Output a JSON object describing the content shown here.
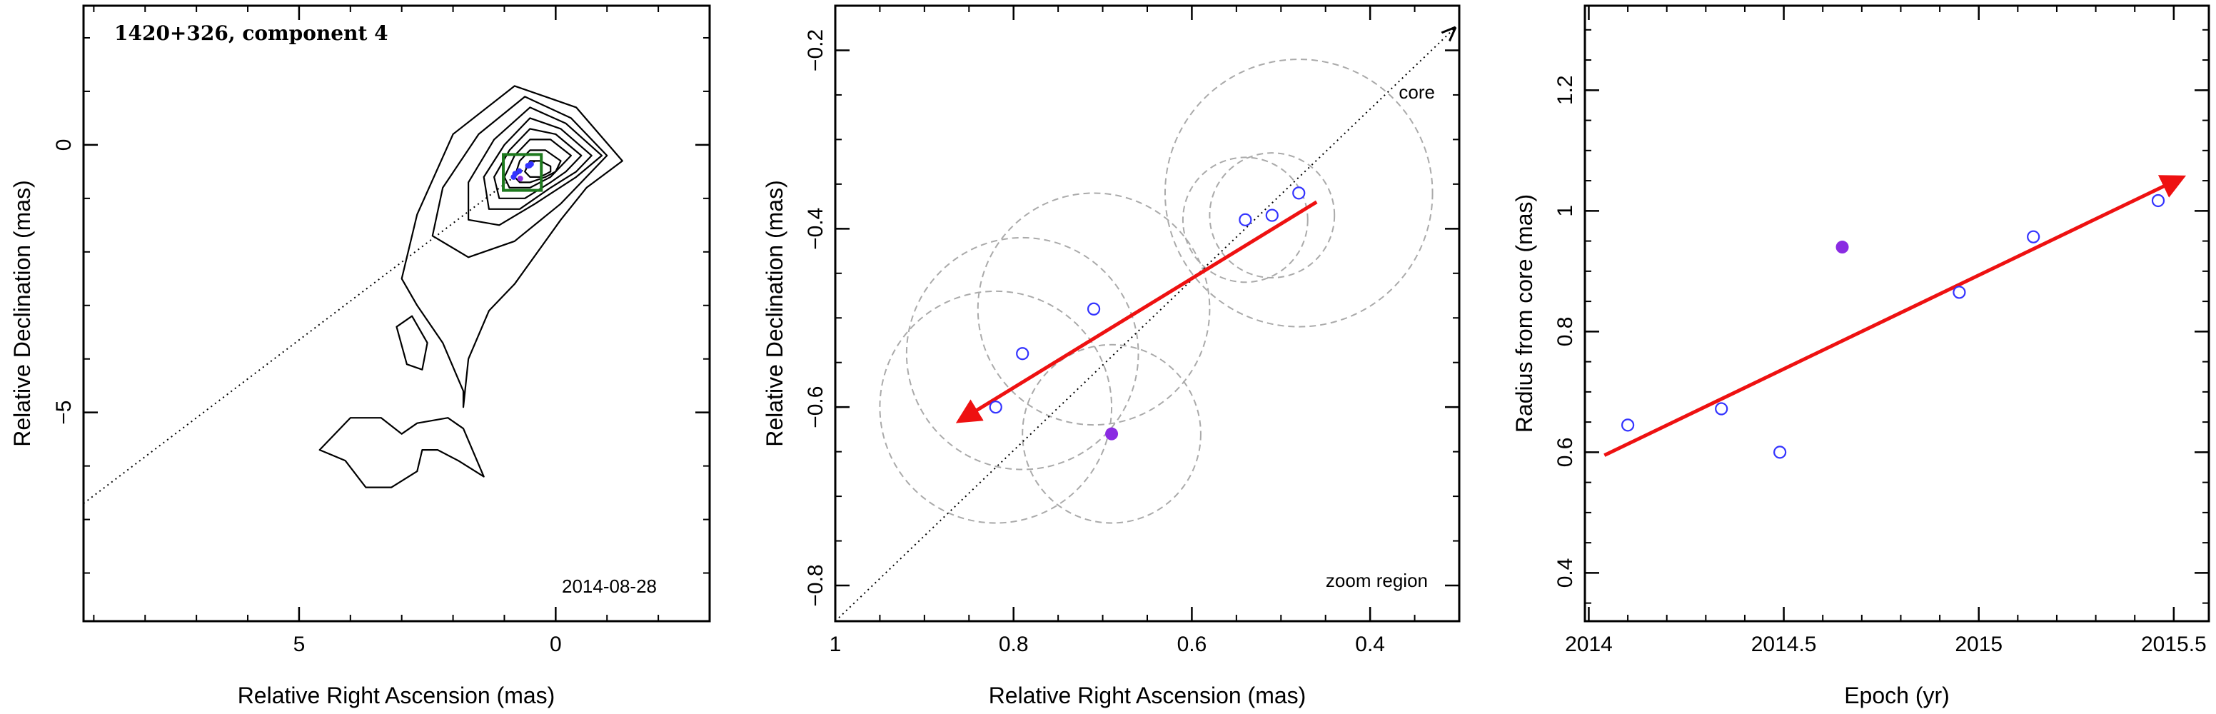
{
  "colors": {
    "observed_marker": "#3333ff",
    "highlight_marker": "#8a2be2",
    "fit_arrow": "#ee1111",
    "zoom_box": "#1e7a1e",
    "contour": "#000000",
    "error_circle": "#aaaaaa"
  },
  "chart_data": [
    {
      "type": "contour",
      "title": "1420+326, component 4",
      "date_label": "2014-08-28",
      "xlabel": "Relative Right Ascension (mas)",
      "ylabel": "Relative Declination (mas)",
      "xlim": [
        9.2,
        -3.0
      ],
      "ylim": [
        -8.9,
        2.6
      ],
      "x_ticks": [
        5,
        0
      ],
      "y_ticks": [
        0,
        -5
      ],
      "x_minor_step": 1,
      "y_minor_step": 1,
      "core_line": {
        "from": [
          9.2,
          -6.7
        ],
        "to": [
          0.4,
          -0.3
        ]
      },
      "zoom_box": {
        "ra": [
          1.02,
          0.28
        ],
        "dec": [
          -0.85,
          -0.18
        ]
      },
      "contours": [
        [
          [
            -1.3,
            -0.3
          ],
          [
            -0.4,
            0.7
          ],
          [
            0.8,
            1.1
          ],
          [
            2.0,
            0.2
          ],
          [
            2.7,
            -1.3
          ],
          [
            3.0,
            -2.5
          ],
          [
            2.7,
            -3.0
          ],
          [
            2.2,
            -3.7
          ],
          [
            1.8,
            -4.6
          ],
          [
            1.8,
            -4.9
          ],
          [
            1.7,
            -4.0
          ],
          [
            1.3,
            -3.1
          ],
          [
            0.8,
            -2.6
          ],
          [
            -0.1,
            -1.4
          ],
          [
            -0.6,
            -0.8
          ],
          [
            -1.3,
            -0.3
          ]
        ],
        [
          [
            -1.0,
            -0.2
          ],
          [
            -0.3,
            0.5
          ],
          [
            0.6,
            0.9
          ],
          [
            1.5,
            0.2
          ],
          [
            2.2,
            -0.8
          ],
          [
            2.4,
            -1.7
          ],
          [
            1.7,
            -2.1
          ],
          [
            0.8,
            -1.8
          ],
          [
            -0.1,
            -1.1
          ],
          [
            -1.0,
            -0.2
          ]
        ],
        [
          [
            -0.9,
            -0.2
          ],
          [
            -0.2,
            0.4
          ],
          [
            0.5,
            0.7
          ],
          [
            1.2,
            0.1
          ],
          [
            1.7,
            -0.7
          ],
          [
            1.7,
            -1.4
          ],
          [
            1.1,
            -1.5
          ],
          [
            0.4,
            -1.1
          ],
          [
            -0.4,
            -0.6
          ],
          [
            -0.9,
            -0.2
          ]
        ],
        [
          [
            -0.7,
            -0.2
          ],
          [
            -0.1,
            0.3
          ],
          [
            0.5,
            0.5
          ],
          [
            1.0,
            0.0
          ],
          [
            1.4,
            -0.6
          ],
          [
            1.3,
            -1.2
          ],
          [
            0.7,
            -1.2
          ],
          [
            0.1,
            -0.8
          ],
          [
            -0.4,
            -0.5
          ],
          [
            -0.7,
            -0.2
          ]
        ],
        [
          [
            -0.5,
            -0.2
          ],
          [
            0.0,
            0.2
          ],
          [
            0.5,
            0.3
          ],
          [
            0.9,
            -0.1
          ],
          [
            1.2,
            -0.6
          ],
          [
            1.1,
            -1.0
          ],
          [
            0.6,
            -1.0
          ],
          [
            0.1,
            -0.7
          ],
          [
            -0.2,
            -0.5
          ],
          [
            -0.5,
            -0.2
          ]
        ],
        [
          [
            -0.3,
            -0.2
          ],
          [
            0.1,
            0.1
          ],
          [
            0.5,
            0.1
          ],
          [
            0.8,
            -0.2
          ],
          [
            1.0,
            -0.6
          ],
          [
            0.9,
            -0.8
          ],
          [
            0.5,
            -0.8
          ],
          [
            0.1,
            -0.6
          ],
          [
            -0.1,
            -0.4
          ],
          [
            -0.3,
            -0.2
          ]
        ],
        [
          [
            -0.1,
            -0.3
          ],
          [
            0.2,
            -0.1
          ],
          [
            0.5,
            -0.1
          ],
          [
            0.7,
            -0.3
          ],
          [
            0.8,
            -0.6
          ],
          [
            0.7,
            -0.7
          ],
          [
            0.5,
            -0.7
          ],
          [
            0.2,
            -0.6
          ],
          [
            0.0,
            -0.5
          ],
          [
            -0.1,
            -0.3
          ]
        ],
        [
          [
            0.1,
            -0.4
          ],
          [
            0.3,
            -0.3
          ],
          [
            0.5,
            -0.3
          ],
          [
            0.6,
            -0.5
          ],
          [
            0.5,
            -0.6
          ],
          [
            0.3,
            -0.6
          ],
          [
            0.1,
            -0.5
          ],
          [
            0.1,
            -0.4
          ]
        ],
        [
          [
            2.9,
            -4.1
          ],
          [
            3.1,
            -3.4
          ],
          [
            2.8,
            -3.2
          ],
          [
            2.5,
            -3.7
          ],
          [
            2.6,
            -4.2
          ],
          [
            2.9,
            -4.1
          ]
        ],
        [
          [
            4.3,
            -5.4
          ],
          [
            4.6,
            -5.7
          ],
          [
            4.1,
            -5.9
          ],
          [
            3.7,
            -6.4
          ],
          [
            3.2,
            -6.4
          ],
          [
            2.7,
            -6.1
          ],
          [
            2.6,
            -5.7
          ],
          [
            2.3,
            -5.7
          ],
          [
            1.9,
            -5.9
          ],
          [
            1.4,
            -6.2
          ],
          [
            1.8,
            -5.3
          ],
          [
            2.1,
            -5.1
          ],
          [
            2.7,
            -5.2
          ],
          [
            3.0,
            -5.4
          ],
          [
            3.4,
            -5.1
          ],
          [
            4.0,
            -5.1
          ],
          [
            4.3,
            -5.4
          ]
        ]
      ],
      "points": {
        "ra": [
          0.82,
          0.79,
          0.71,
          0.69,
          0.54,
          0.51,
          0.48
        ],
        "dec": [
          -0.6,
          -0.54,
          -0.49,
          -0.63,
          -0.39,
          -0.385,
          -0.36
        ]
      }
    },
    {
      "type": "scatter",
      "title": "",
      "corner_label": "zoom region",
      "core_label": "core",
      "xlabel": "Relative Right Ascension (mas)",
      "ylabel": "Relative Declination (mas)",
      "xlim": [
        1.0,
        0.3
      ],
      "ylim": [
        -0.84,
        -0.15
      ],
      "x_ticks": [
        1,
        0.8,
        0.6,
        0.4
      ],
      "x_tick_labels": [
        "1",
        "0.8",
        "0.6",
        "0.4"
      ],
      "y_ticks": [
        -0.2,
        -0.4,
        -0.6,
        -0.8
      ],
      "y_tick_labels": [
        "−0.2",
        "−0.4",
        "−0.6",
        "−0.8"
      ],
      "x_minor_step": 0.05,
      "y_minor_step": 0.05,
      "series": [
        {
          "ra": [
            0.82,
            0.79,
            0.71,
            0.54,
            0.51,
            0.48
          ],
          "dec": [
            -0.6,
            -0.54,
            -0.49,
            -0.39,
            -0.385,
            -0.36
          ],
          "filled": false
        },
        {
          "ra": [
            0.69
          ],
          "dec": [
            -0.63
          ],
          "filled": true
        }
      ],
      "error_circles": [
        {
          "ra": 0.82,
          "dec": -0.6,
          "r": 0.13
        },
        {
          "ra": 0.79,
          "dec": -0.54,
          "r": 0.13
        },
        {
          "ra": 0.71,
          "dec": -0.49,
          "r": 0.13
        },
        {
          "ra": 0.69,
          "dec": -0.63,
          "r": 0.1
        },
        {
          "ra": 0.54,
          "dec": -0.39,
          "r": 0.07
        },
        {
          "ra": 0.51,
          "dec": -0.385,
          "r": 0.07
        },
        {
          "ra": 0.48,
          "dec": -0.36,
          "r": 0.15
        }
      ],
      "core_line": {
        "from": [
          1.0,
          -0.84
        ],
        "to": [
          0.305,
          -0.175
        ]
      },
      "fit_arrow": {
        "from": [
          0.46,
          -0.37
        ],
        "to": [
          0.86,
          -0.615
        ]
      }
    },
    {
      "type": "scatter",
      "title": "",
      "xlabel": "Epoch (yr)",
      "ylabel": "Radius from core (mas)",
      "xlim": [
        2013.99,
        2015.59
      ],
      "ylim": [
        0.32,
        1.34
      ],
      "x_ticks": [
        2014,
        2014.5,
        2015,
        2015.5
      ],
      "x_tick_labels": [
        "2014",
        "2014.5",
        "2015",
        "2015.5"
      ],
      "y_ticks": [
        0.4,
        0.6,
        0.8,
        1,
        1.2
      ],
      "y_tick_labels": [
        "0.4",
        "0.6",
        "0.8",
        "1",
        "1.2"
      ],
      "x_minor_step": 0.1,
      "y_minor_step": 0.05,
      "series": [
        {
          "x": [
            2014.1,
            2014.34,
            2014.49,
            2014.95,
            2015.14,
            2015.46
          ],
          "y": [
            0.645,
            0.672,
            0.6,
            0.865,
            0.957,
            1.017
          ],
          "filled": false
        },
        {
          "x": [
            2014.65
          ],
          "y": [
            0.94
          ],
          "filled": true
        }
      ],
      "fit_arrow": {
        "from": [
          2014.04,
          0.595
        ],
        "to": [
          2015.52,
          1.055
        ]
      }
    }
  ]
}
